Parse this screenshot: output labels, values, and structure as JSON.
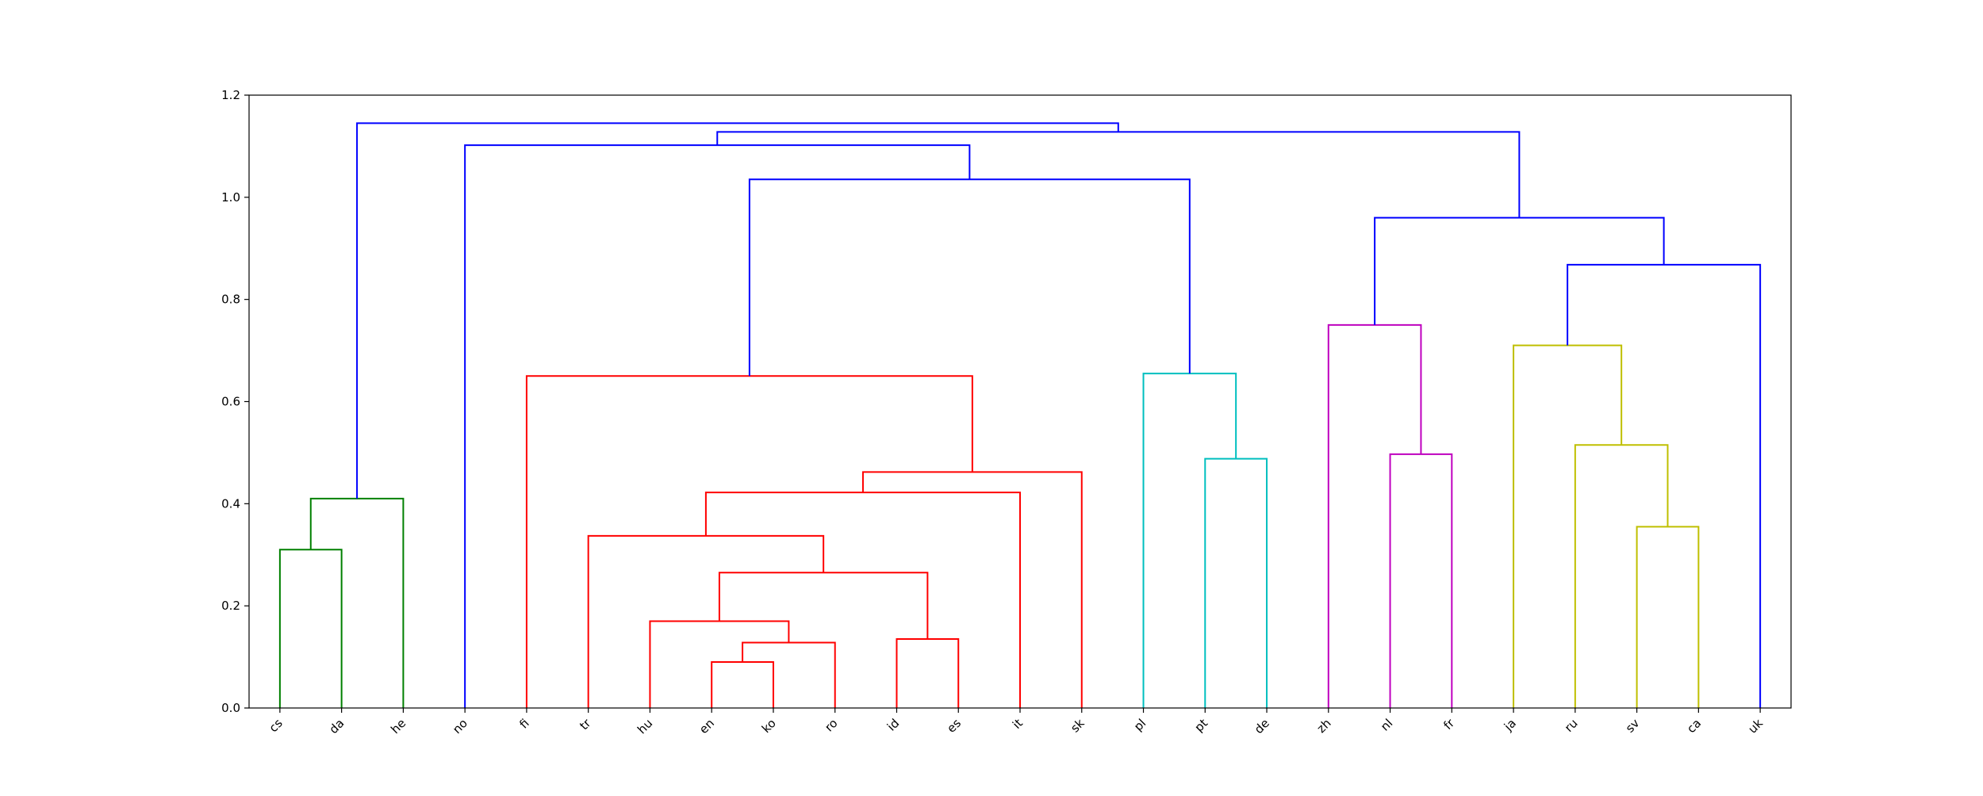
{
  "chart_data": {
    "type": "dendrogram",
    "title": "",
    "xlabel": "",
    "ylabel": "",
    "ylim": [
      0,
      1.2
    ],
    "yticks": [
      "0.0",
      "0.2",
      "0.4",
      "0.6",
      "0.8",
      "1.0",
      "1.2"
    ],
    "grid": false,
    "leaves": [
      "cs",
      "da",
      "he",
      "no",
      "fi",
      "tr",
      "hu",
      "en",
      "ko",
      "ro",
      "id",
      "es",
      "it",
      "sk",
      "pl",
      "pt",
      "de",
      "zh",
      "nl",
      "fr",
      "ja",
      "ru",
      "sv",
      "ca",
      "uk"
    ],
    "colors": {
      "green": "#008000",
      "red": "#ff0000",
      "cyan": "#00bfbf",
      "magenta": "#bf00bf",
      "yellow": "#bfbf00",
      "blue": "#0000ff"
    },
    "merges": [
      {
        "a": "cs",
        "b": "da",
        "height": 0.31,
        "color": "green"
      },
      {
        "a": "cs+da",
        "b": "he",
        "height": 0.41,
        "color": "green"
      },
      {
        "a": "en",
        "b": "ko",
        "height": 0.09,
        "color": "red"
      },
      {
        "a": "en+ko",
        "b": "ro",
        "height": 0.128,
        "color": "red"
      },
      {
        "a": "hu",
        "b": "en+ko+ro",
        "height": 0.17,
        "color": "red"
      },
      {
        "a": "id",
        "b": "es",
        "height": 0.135,
        "color": "red"
      },
      {
        "a": "hu+en+ko+ro",
        "b": "id+es",
        "height": 0.265,
        "color": "red"
      },
      {
        "a": "tr",
        "b": "hu..es",
        "height": 0.337,
        "color": "red"
      },
      {
        "a": "tr..es",
        "b": "it",
        "height": 0.422,
        "color": "red"
      },
      {
        "a": "tr..it",
        "b": "sk",
        "height": 0.462,
        "color": "red"
      },
      {
        "a": "fi",
        "b": "tr..sk",
        "height": 0.65,
        "color": "red"
      },
      {
        "a": "pt",
        "b": "de",
        "height": 0.488,
        "color": "cyan"
      },
      {
        "a": "pl",
        "b": "pt+de",
        "height": 0.655,
        "color": "cyan"
      },
      {
        "a": "nl",
        "b": "fr",
        "height": 0.497,
        "color": "magenta"
      },
      {
        "a": "zh",
        "b": "nl+fr",
        "height": 0.75,
        "color": "magenta"
      },
      {
        "a": "sv",
        "b": "ca",
        "height": 0.355,
        "color": "yellow"
      },
      {
        "a": "ru",
        "b": "sv+ca",
        "height": 0.515,
        "color": "yellow"
      },
      {
        "a": "ja",
        "b": "ru+sv+ca",
        "height": 0.71,
        "color": "yellow"
      },
      {
        "a": "ja..ca",
        "b": "uk",
        "height": 0.868,
        "color": "blue"
      },
      {
        "a": "zh+nl+fr",
        "b": "ja..uk",
        "height": 0.96,
        "color": "blue"
      },
      {
        "a": "fi..sk",
        "b": "pl+pt+de",
        "height": 1.035,
        "color": "blue"
      },
      {
        "a": "no",
        "b": "fi..de",
        "height": 1.102,
        "color": "blue"
      },
      {
        "a": "no..de",
        "b": "zh..uk",
        "height": 1.128,
        "color": "blue"
      },
      {
        "a": "cs+da+he",
        "b": "no..uk",
        "height": 1.145,
        "color": "blue"
      }
    ]
  }
}
